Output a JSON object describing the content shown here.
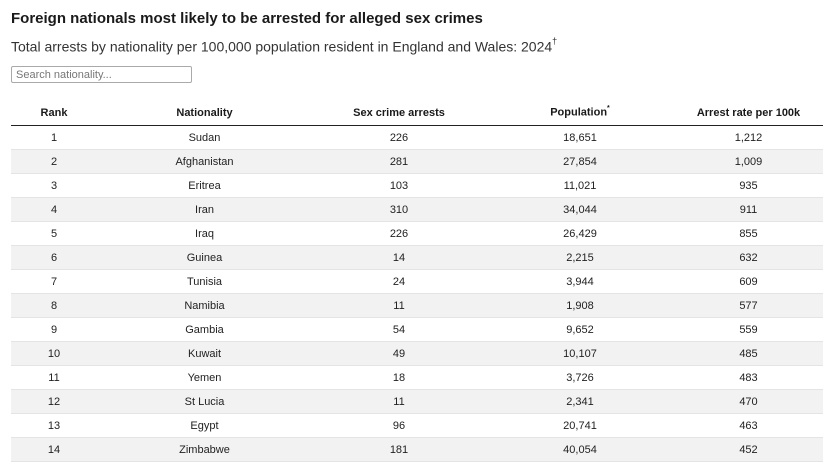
{
  "chart_data": {
    "type": "table",
    "title": "Foreign nationals most likely to be arrested for alleged sex crimes",
    "subtitle": "Total arrests by nationality per 100,000 population resident in England and Wales: 2024",
    "subtitle_mark": "†",
    "search_placeholder": "Search nationality...",
    "columns": [
      "Rank",
      "Nationality",
      "Sex crime arrests",
      "Population",
      "Arrest rate per 100k"
    ],
    "population_mark": "*",
    "rows": [
      [
        "1",
        "Sudan",
        "226",
        "18,651",
        "1,212"
      ],
      [
        "2",
        "Afghanistan",
        "281",
        "27,854",
        "1,009"
      ],
      [
        "3",
        "Eritrea",
        "103",
        "11,021",
        "935"
      ],
      [
        "4",
        "Iran",
        "310",
        "34,044",
        "911"
      ],
      [
        "5",
        "Iraq",
        "226",
        "26,429",
        "855"
      ],
      [
        "6",
        "Guinea",
        "14",
        "2,215",
        "632"
      ],
      [
        "7",
        "Tunisia",
        "24",
        "3,944",
        "609"
      ],
      [
        "8",
        "Namibia",
        "11",
        "1,908",
        "577"
      ],
      [
        "9",
        "Gambia",
        "54",
        "9,652",
        "559"
      ],
      [
        "10",
        "Kuwait",
        "49",
        "10,107",
        "485"
      ],
      [
        "11",
        "Yemen",
        "18",
        "3,726",
        "483"
      ],
      [
        "12",
        "St Lucia",
        "11",
        "2,341",
        "470"
      ],
      [
        "13",
        "Egypt",
        "96",
        "20,741",
        "463"
      ],
      [
        "14",
        "Zimbabwe",
        "181",
        "40,054",
        "452"
      ]
    ]
  }
}
